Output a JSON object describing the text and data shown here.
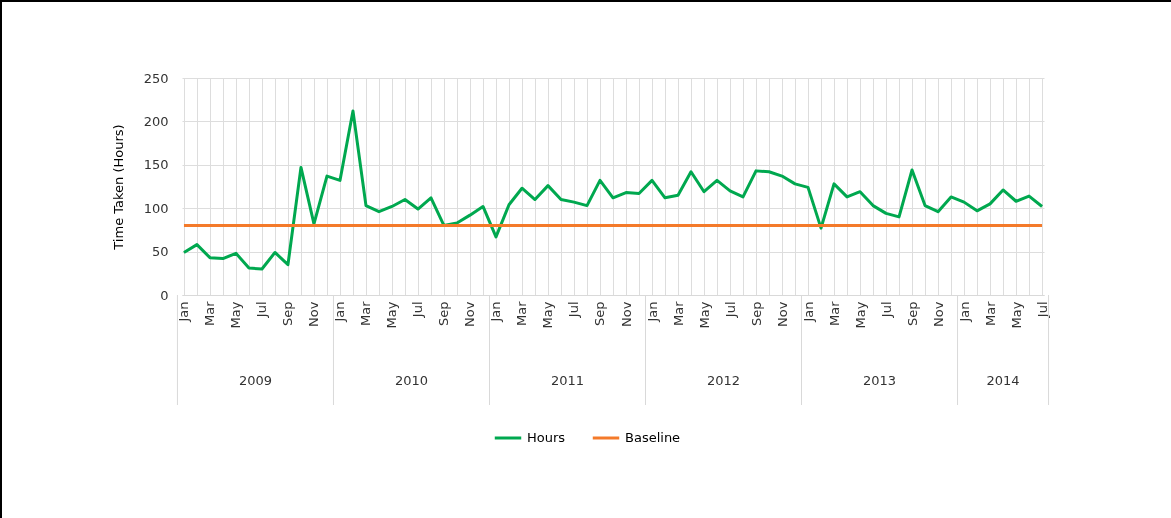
{
  "chart_data": {
    "type": "line",
    "ylabel": "Time Taken (Hours)",
    "categories": [
      "Jan",
      null,
      "Mar",
      null,
      "May",
      null,
      "Jul",
      null,
      "Sep",
      null,
      "Nov",
      null,
      "Jan",
      null,
      "Mar",
      null,
      "May",
      null,
      "Jul",
      null,
      "Sep",
      null,
      "Nov",
      null,
      "Jan",
      null,
      "Mar",
      null,
      "May",
      null,
      "Jul",
      null,
      "Sep",
      null,
      "Nov",
      null,
      "Jan",
      null,
      "Mar",
      null,
      "May",
      null,
      "Jul",
      null,
      "Sep",
      null,
      "Nov",
      null,
      "Jan",
      null,
      "Mar",
      null,
      "May",
      null,
      "Jul",
      null,
      "Sep",
      null,
      "Nov",
      null,
      "Jan",
      null,
      "Mar",
      null,
      "May",
      null,
      "Jul"
    ],
    "series": [
      {
        "name": "Hours",
        "color": "#00a84f",
        "values": [
          49,
          58,
          43,
          42,
          48,
          31,
          30,
          49,
          35,
          147,
          82,
          137,
          132,
          212,
          103,
          96,
          102,
          110,
          99,
          112,
          80,
          83,
          92,
          102,
          67,
          104,
          123,
          110,
          126,
          110,
          107,
          103,
          132,
          112,
          118,
          117,
          132,
          112,
          115,
          142,
          119,
          132,
          120,
          113,
          143,
          142,
          137,
          128,
          124,
          77,
          128,
          113,
          119,
          103,
          94,
          90,
          144,
          103,
          96,
          113,
          107,
          97,
          105,
          121,
          108,
          114,
          102
        ]
      },
      {
        "name": "Baseline",
        "color": "#f47a2a",
        "values": [
          80,
          80,
          80,
          80,
          80,
          80,
          80,
          80,
          80,
          80,
          80,
          80,
          80,
          80,
          80,
          80,
          80,
          80,
          80,
          80,
          80,
          80,
          80,
          80,
          80,
          80,
          80,
          80,
          80,
          80,
          80,
          80,
          80,
          80,
          80,
          80,
          80,
          80,
          80,
          80,
          80,
          80,
          80,
          80,
          80,
          80,
          80,
          80,
          80,
          80,
          80,
          80,
          80,
          80,
          80,
          80,
          80,
          80,
          80,
          80,
          80,
          80,
          80,
          80,
          80,
          80,
          80
        ]
      }
    ],
    "annotations": [
      "2009",
      "2010",
      "2011",
      "2012",
      "2013",
      "2014"
    ],
    "ylim": [
      0,
      250
    ],
    "yticks": [
      0,
      50,
      100,
      150,
      200,
      250
    ],
    "grid": true,
    "legend": "bottom",
    "marker": "none",
    "line_style": "solid"
  }
}
